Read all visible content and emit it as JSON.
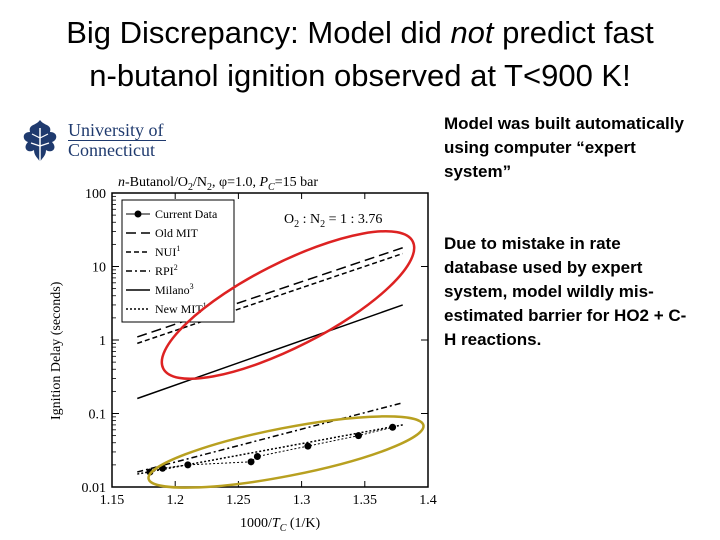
{
  "slide": {
    "title_line1_a": "Big Discrepancy: Model did ",
    "title_line1_b": "not",
    "title_line1_c": " predict fast",
    "title_line2": "n-butanol ignition observed at T<900 K!",
    "bullet1": "Model was built automatically using computer “expert system”",
    "bullet2": "Due to mistake in rate database used by expert system, model wildly mis-estimated barrier for HO2 + C-H reactions."
  },
  "logo": {
    "line1": "University of",
    "line2": "Connecticut",
    "icon": "oak-leaf-icon",
    "color": "#1f3a6e"
  },
  "chart_data": {
    "type": "line",
    "title": "n-Butanol/O2/N2, φ=1.0, PC=15 bar",
    "annotation": "O2 : N2 = 1 : 3.76",
    "xlabel": "1000/TC (1/K)",
    "ylabel": "Ignition Delay (seconds)",
    "xlim": [
      1.15,
      1.4
    ],
    "ylim": [
      0.01,
      100
    ],
    "yscale": "log",
    "xticks": [
      "1.15",
      "1.2",
      "1.25",
      "1.3",
      "1.35",
      "1.4"
    ],
    "yticks": [
      "0.01",
      "0.1",
      "1",
      "10",
      "100"
    ],
    "legend_position": "top-left",
    "series": [
      {
        "name": "Current Data",
        "style": "markers",
        "x": [
          1.18,
          1.19,
          1.21,
          1.26,
          1.265,
          1.305,
          1.345,
          1.372
        ],
        "y": [
          0.016,
          0.018,
          0.02,
          0.022,
          0.026,
          0.036,
          0.05,
          0.065
        ]
      },
      {
        "name": "Old MIT",
        "style": "long-dash",
        "x": [
          1.17,
          1.38
        ],
        "y": [
          1.1,
          18
        ]
      },
      {
        "name": "NUI1",
        "style": "short-dash",
        "x": [
          1.17,
          1.38
        ],
        "y": [
          0.9,
          15
        ]
      },
      {
        "name": "RPI2",
        "style": "dot-dash",
        "x": [
          1.17,
          1.38
        ],
        "y": [
          0.016,
          0.14
        ]
      },
      {
        "name": "Milano3",
        "style": "solid",
        "x": [
          1.17,
          1.38
        ],
        "y": [
          0.16,
          3
        ]
      },
      {
        "name": "New MIT1",
        "style": "dotted",
        "x": [
          1.17,
          1.38
        ],
        "y": [
          0.015,
          0.07
        ]
      }
    ],
    "highlights": [
      {
        "name": "red-ellipse",
        "color": "#dd2222"
      },
      {
        "name": "gold-ellipse",
        "color": "#b8a020"
      }
    ]
  }
}
